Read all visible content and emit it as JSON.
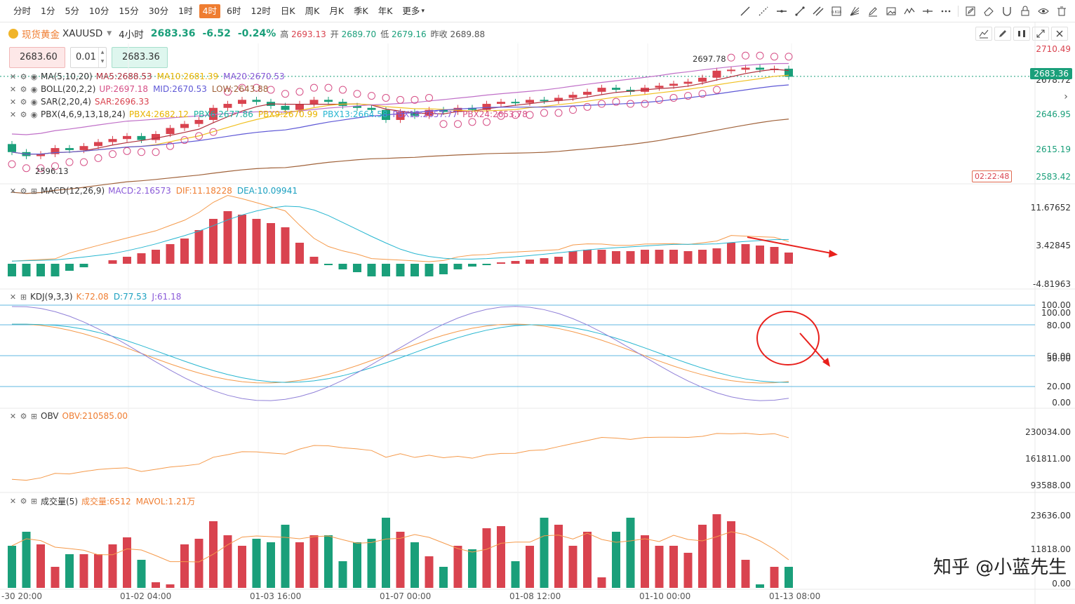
{
  "toolbar": {
    "timeframes": [
      "分时",
      "1分",
      "5分",
      "10分",
      "15分",
      "30分",
      "1时",
      "4时",
      "6时",
      "12时",
      "日K",
      "周K",
      "月K",
      "季K",
      "年K",
      "更多"
    ],
    "active": "4时",
    "tool_icons": [
      "trendline-icon",
      "ray-icon",
      "horizontal-line-icon",
      "segment-icon",
      "channel-icon",
      "fib-icon",
      "fan-icon",
      "pen-icon",
      "image-icon",
      "wave-icon",
      "hline-icon",
      "more-dots-icon",
      "edit-icon",
      "eraser-icon",
      "magnet-icon",
      "lock-icon",
      "eye-icon",
      "trash-icon"
    ]
  },
  "symbol": {
    "name": "现货黄金",
    "code": "XAUUSD",
    "period": "4小时",
    "price": "2683.36",
    "change": "-6.52",
    "change_pct": "-0.24%",
    "high_label": "高",
    "high": "2693.13",
    "open_label": "开",
    "open": "2689.70",
    "low_label": "低",
    "low": "2679.16",
    "prev_label": "昨收",
    "prev_close": "2689.88"
  },
  "order": {
    "sell_price": "2683.60",
    "quantity": "0.01",
    "buy_price": "2683.36"
  },
  "legends": {
    "ma": {
      "title": "MA(5,10,20)",
      "ma5": "MA5:2688.53",
      "ma10": "MA10:2681.39",
      "ma20": "MA20:2670.53"
    },
    "boll": {
      "title": "BOLL(20,2,2)",
      "up": "UP:2697.18",
      "mid": "MID:2670.53",
      "low": "LOW:2643.88"
    },
    "sar": {
      "title": "SAR(2,20,4)",
      "value": "SAR:2696.33"
    },
    "pbx": {
      "title": "PBX(4,6,9,13,18,24)",
      "p4": "PBX4:2682.12",
      "p6": "PBX6:2677.86",
      "p9": "PBX9:2670.99",
      "p13": "PBX13:2664.58",
      "p18": "PBX18:2657.77",
      "p24": "PBX24:2653.78"
    },
    "macd": {
      "title": "MACD(12,26,9)",
      "macd": "MACD:2.16573",
      "dif": "DIF:11.18228",
      "dea": "DEA:10.09941"
    },
    "kdj": {
      "title": "KDJ(9,3,3)",
      "k": "K:72.08",
      "d": "D:77.53",
      "j": "J:61.18"
    },
    "obv": {
      "title": "OBV",
      "value": "OBV:210585.00"
    },
    "vol": {
      "title": "成交量(5)",
      "vol": "成交量:6512",
      "mavol": "MAVOL:1.21万"
    }
  },
  "price_axis": [
    "2710.49",
    "2678.72",
    "2646.95",
    "2615.19",
    "2583.42"
  ],
  "current_price_tag": "2683.36",
  "countdown": "02:22:48",
  "annotations": {
    "high_mark": "2697.78",
    "low_mark": "2596.13"
  },
  "macd_axis": [
    "11.67652",
    "3.42845",
    "-4.81963"
  ],
  "kdj_axis": [
    "100.00",
    "100.00",
    "80.00",
    "50.00",
    "50.00",
    "20.00",
    "0.00"
  ],
  "obv_axis": [
    "230034.00",
    "161811.00",
    "93588.00"
  ],
  "vol_axis": [
    "23636.00",
    "11818.00",
    "0.00"
  ],
  "x_axis": [
    "-30 20:00",
    "01-02 04:00",
    "01-03 16:00",
    "01-07 00:00",
    "01-08 12:00",
    "01-10 00:00",
    "01-13 08:00"
  ],
  "watermark": "知乎 @小蓝先生",
  "colors": {
    "up": "#d9434f",
    "down": "#1a9f7a",
    "accent": "#ef7d31",
    "ma5": "#b0303d",
    "ma10": "#f0c020",
    "ma20": "#5e58d6",
    "boll": "#c070c8",
    "pbx": "#a0623a",
    "dif": "#f59a4b",
    "dea": "#27b6d0",
    "kdj_k": "#f59a4b",
    "kdj_d": "#27b6d0",
    "kdj_j": "#9080d8",
    "obv": "#f59a4b",
    "annotation": "#e8201c"
  }
}
